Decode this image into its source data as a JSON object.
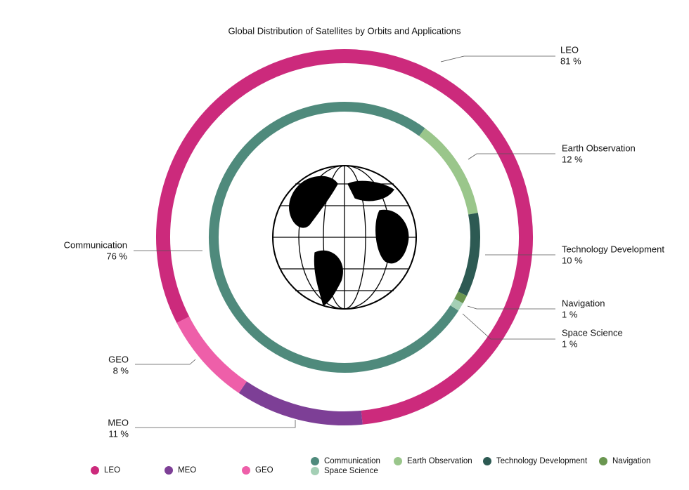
{
  "chart_data": [
    {
      "type": "donut",
      "title": "Global Distribution of Satellites by Orbits and Applications",
      "categories": [
        "LEO",
        "MEO",
        "GEO"
      ],
      "values": [
        81,
        11,
        8
      ],
      "value_labels": [
        "81 %",
        "11 %",
        "8 %"
      ],
      "colors": [
        "#cc2a7c",
        "#7d3f96",
        "#ee5fa9"
      ]
    },
    {
      "type": "donut",
      "categories": [
        "Communication",
        "Earth Observation",
        "Technology Development",
        "Navigation",
        "Space Science"
      ],
      "values": [
        76,
        12,
        10,
        1,
        1
      ],
      "value_labels": [
        "76 %",
        "12 %",
        "10 %",
        "1 %",
        "1 %"
      ],
      "colors": [
        "#4f8a7c",
        "#9ac68b",
        "#2d5a53",
        "#6a9650",
        "#a4cfb5"
      ]
    }
  ]
}
